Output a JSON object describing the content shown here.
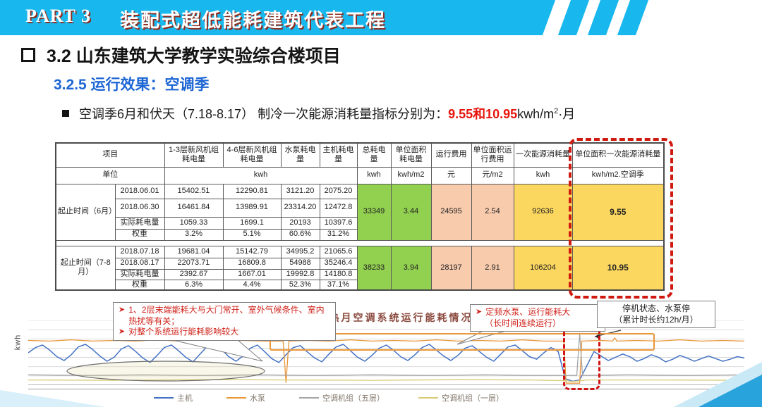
{
  "colors": {
    "accent_cyan": "#18b7ee",
    "subtitle_blue": "#1d66d4",
    "highlight_red": "#e8150d",
    "cell_green": "#92d050",
    "cell_salmon": "#f8cbad",
    "cell_yellow": "#fcd75f",
    "dashed_red": "#cf1a10",
    "annotation_red": "#cf2018"
  },
  "header": {
    "part_label": "PART 3",
    "title": "装配式超低能耗建筑代表工程"
  },
  "section": {
    "title": "3.2 山东建筑大学教学实验综合楼项目",
    "subtitle": "3.2.5 运行效果：空调季"
  },
  "statement": {
    "text": "空调季6月和伏天（7.18-8.17） 制冷一次能源消耗量指标分别为：",
    "highlight": "9.55和10.95",
    "unit_base": "kwh/m",
    "unit_sup": "2",
    "unit_tail": "·月"
  },
  "table": {
    "header": {
      "col_item": "项目",
      "cols": [
        "1-3层新风机组耗电量",
        "4-6层新风机组耗电量",
        "水泵耗电量",
        "主机耗电量",
        "总耗电量",
        "单位面积耗电量",
        "运行费用",
        "单位面积运行费用",
        "一次能源消耗量",
        "单位面积一次能源消耗量"
      ]
    },
    "units": {
      "label": "单位",
      "kwh_span": "kwh",
      "cols": [
        "kwh",
        "kwh/m2",
        "元",
        "元/m2",
        "kwh",
        "kwh/m2.空调季"
      ]
    },
    "sections": [
      {
        "group": "起止时间（6月）",
        "rows": [
          [
            "2018.06.01",
            "15402.51",
            "12290.81",
            "3121.20",
            "2075.20"
          ],
          [
            "2018.06.30",
            "16461.84",
            "13989.91",
            "23314.20",
            "12472.8"
          ],
          [
            "实际耗电量",
            "1059.33",
            "1699.1",
            "20193",
            "10397.6"
          ],
          [
            "权重",
            "3.2%",
            "5.1%",
            "60.6%",
            "31.2%"
          ]
        ],
        "summary": [
          "33349",
          "3.44",
          "24595",
          "2.54",
          "92636",
          "9.55"
        ]
      },
      {
        "group": "起止时间（7-8月）",
        "rows": [
          [
            "2018.07.18",
            "19681.04",
            "15142.79",
            "34995.2",
            "21065.6"
          ],
          [
            "2018.08.17",
            "22073.71",
            "16809.8",
            "54988",
            "35246.4"
          ],
          [
            "实际耗电量",
            "2392.67",
            "1667.01",
            "19992.8",
            "14180.8"
          ],
          [
            "权重",
            "6.3%",
            "4.4%",
            "52.3%",
            "37.1%"
          ]
        ],
        "summary": [
          "38233",
          "3.94",
          "28197",
          "2.91",
          "106204",
          "10.95"
        ]
      }
    ]
  },
  "chart_data": {
    "type": "line",
    "title": "最热月空调系统运行能耗情况",
    "ylabel": "kwh",
    "xlabel": "",
    "ylim": [
      0,
      100
    ],
    "grid": true,
    "legend_position": "bottom",
    "series": [
      {
        "name": "主机",
        "color": "#4472c4",
        "values": [
          50,
          58,
          62,
          54,
          44,
          38,
          47,
          59,
          63,
          55,
          45,
          37,
          43,
          56,
          61,
          52,
          42,
          35,
          46,
          58,
          62,
          53,
          43,
          36,
          48,
          60,
          64,
          55,
          44,
          37,
          45,
          57,
          62,
          52,
          41,
          35,
          47,
          58,
          61,
          51,
          42,
          36,
          48,
          59,
          63,
          53,
          43,
          37,
          46,
          57,
          62,
          54,
          44,
          38,
          47,
          58,
          63,
          54,
          45,
          38,
          46,
          57,
          61,
          52,
          43,
          37,
          48,
          59,
          62,
          53,
          44,
          40,
          50,
          58,
          52,
          10,
          6,
          8,
          30,
          52,
          45,
          38,
          43,
          48,
          44,
          37,
          41,
          47,
          43,
          36,
          40,
          46,
          42,
          37,
          41,
          45,
          41,
          37,
          40,
          44,
          42
        ]
      },
      {
        "name": "水泵",
        "color": "#e8973a",
        "points": [
          [
            0,
            69
          ],
          [
            3,
            68
          ],
          [
            6,
            70
          ],
          [
            9,
            68
          ],
          [
            12,
            69
          ],
          [
            15,
            68
          ],
          [
            18,
            70
          ],
          [
            21,
            68
          ],
          [
            24,
            69
          ],
          [
            27,
            68
          ],
          [
            30,
            69
          ],
          [
            33,
            68
          ],
          [
            35.6,
            68
          ],
          [
            36,
            4
          ],
          [
            36.4,
            68
          ],
          [
            39,
            69
          ],
          [
            42,
            68
          ],
          [
            45,
            70
          ],
          [
            48,
            68
          ],
          [
            51,
            69
          ],
          [
            54,
            68
          ],
          [
            57,
            70
          ],
          [
            60,
            68
          ],
          [
            63,
            69
          ],
          [
            66,
            68
          ],
          [
            69,
            70
          ],
          [
            72,
            68
          ],
          [
            74.8,
            68
          ],
          [
            75.1,
            3
          ],
          [
            77,
            3
          ],
          [
            77.3,
            68
          ],
          [
            80,
            69
          ],
          [
            81.6,
            68
          ],
          [
            81.9,
            73
          ],
          [
            82.2,
            68
          ],
          [
            85,
            69
          ],
          [
            88,
            68
          ],
          [
            91,
            70
          ],
          [
            94,
            68
          ],
          [
            97,
            69
          ],
          [
            100,
            68
          ]
        ]
      },
      {
        "name": "空调机组（五层）",
        "color": "#a6a6a6",
        "points": [
          [
            0,
            16
          ],
          [
            8,
            15
          ],
          [
            16,
            16
          ],
          [
            24,
            15
          ],
          [
            32,
            16
          ],
          [
            40,
            15
          ],
          [
            48,
            16
          ],
          [
            56,
            15
          ],
          [
            64,
            16
          ],
          [
            70,
            15
          ],
          [
            76.6,
            15
          ],
          [
            77,
            80
          ],
          [
            77.4,
            15
          ],
          [
            84,
            16
          ],
          [
            92,
            15
          ],
          [
            100,
            16
          ]
        ]
      },
      {
        "name": "空调机组（一层）",
        "color": "#d8ca74",
        "points": [
          [
            0,
            8
          ],
          [
            12,
            7.5
          ],
          [
            24,
            8.5
          ],
          [
            36,
            8
          ],
          [
            48,
            7.5
          ],
          [
            60,
            8.5
          ],
          [
            70,
            8
          ],
          [
            75,
            7
          ],
          [
            76,
            5.5
          ],
          [
            78,
            8
          ],
          [
            88,
            8
          ],
          [
            100,
            7.5
          ]
        ]
      }
    ],
    "annotations": [
      {
        "bullet": "➤",
        "lines": [
          "1、2层末端能耗大与大门常开、室外气候条件、室内热扰等有关；",
          "对整个系统运行能耗影响较大"
        ]
      },
      {
        "bullet": "➤",
        "lines": [
          "定频水泵、运行能耗大",
          "（长时间连续运行）"
        ]
      },
      {
        "lines": [
          "停机状态、水泵停",
          "（累计时长约12h/月）"
        ]
      }
    ]
  }
}
